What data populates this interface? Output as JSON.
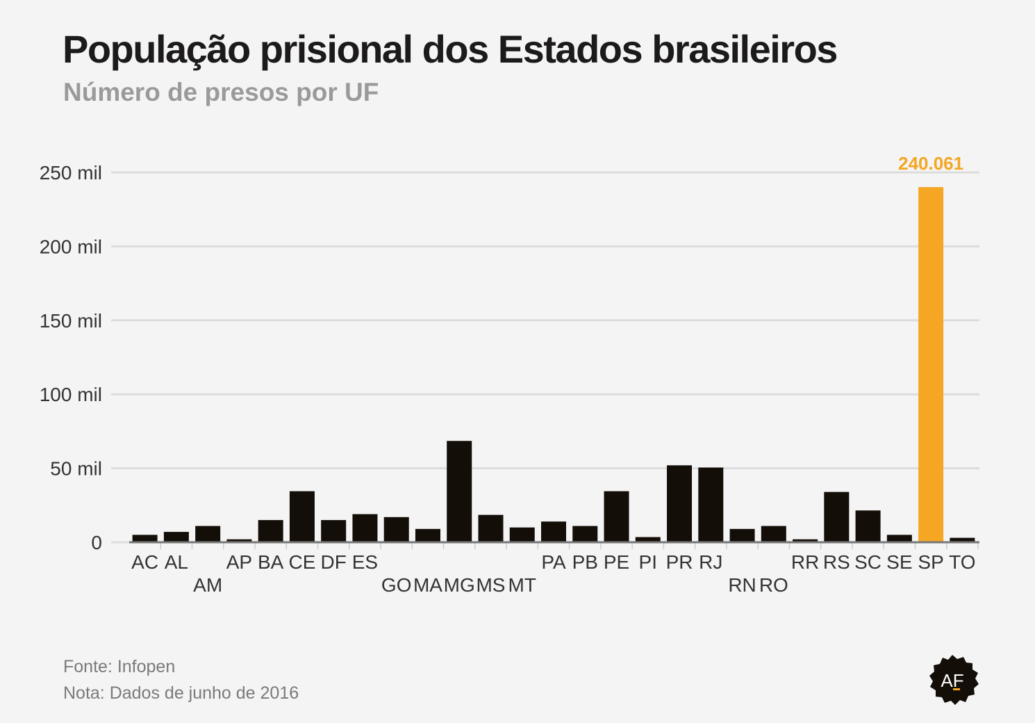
{
  "title": "População prisional dos Estados brasileiros",
  "subtitle": "Número de presos por UF",
  "source": "Fonte: Infopen",
  "note": "Nota: Dados de junho de 2016",
  "logo": {
    "text": "AF",
    "icon": "af-seal-logo"
  },
  "colors": {
    "bar": "#140e08",
    "highlight": "#f5a623",
    "grid": "#dcdcdc",
    "axis": "#777777"
  },
  "chart_data": {
    "type": "bar",
    "title": "População prisional dos Estados brasileiros",
    "subtitle": "Número de presos por UF",
    "xlabel": "",
    "ylabel": "",
    "ylim": [
      0,
      250000
    ],
    "yticks": [
      {
        "value": 0,
        "label": "0"
      },
      {
        "value": 50000,
        "label": "50 mil"
      },
      {
        "value": 100000,
        "label": "100 mil"
      },
      {
        "value": 150000,
        "label": "150 mil"
      },
      {
        "value": 200000,
        "label": "200 mil"
      },
      {
        "value": 250000,
        "label": "250 mil"
      }
    ],
    "grid": true,
    "highlight": {
      "category": "SP",
      "label": "240.061"
    },
    "categories": [
      "AC",
      "AL",
      "AM",
      "AP",
      "BA",
      "CE",
      "DF",
      "ES",
      "GO",
      "MA",
      "MG",
      "MS",
      "MT",
      "PA",
      "PB",
      "PE",
      "PI",
      "PR",
      "RJ",
      "RN",
      "RO",
      "RR",
      "RS",
      "SC",
      "SE",
      "SP",
      "TO"
    ],
    "values": [
      5000,
      7000,
      11000,
      2000,
      15000,
      34500,
      15000,
      19000,
      17000,
      9000,
      68500,
      18500,
      10000,
      14000,
      11000,
      34500,
      3500,
      52000,
      50500,
      9000,
      11000,
      2000,
      34000,
      21500,
      5000,
      240061,
      3000
    ]
  }
}
